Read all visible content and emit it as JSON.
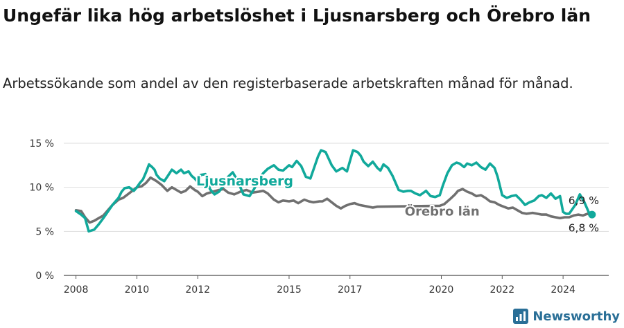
{
  "title": "Ungefär lika hög arbetslöshet i Ljusnarsberg och Örebro län",
  "subtitle": "Arbetssökande som andel av den registerbaserade arbetskraften månad för månad.",
  "brand": {
    "name": "Newsworthy",
    "icon": "newsworthy-logo-icon"
  },
  "colors": {
    "ljusnarsberg": "#11a99b",
    "orebro": "#707070",
    "brand": "#2a6f97"
  },
  "chart_data": {
    "type": "line",
    "title": "Ungefär lika hög arbetslöshet i Ljusnarsberg och Örebro län",
    "xlabel": "",
    "ylabel": "",
    "ylim": [
      0,
      15
    ],
    "xlim": [
      2007.6,
      2025.5
    ],
    "y_ticks": [
      0,
      5,
      10,
      15
    ],
    "y_tick_labels": [
      "0 %",
      "5 %",
      "10 %",
      "15 %"
    ],
    "x_ticks": [
      2008,
      2010,
      2012,
      2015,
      2017,
      2020,
      2022,
      2024
    ],
    "x_tick_labels": [
      "2008",
      "2010",
      "2012",
      "2015",
      "2017",
      "2020",
      "2022",
      "2024"
    ],
    "grid": true,
    "series": [
      {
        "name": "Ljusnarsberg",
        "label": "Ljusnarsberg",
        "end_label": "6,9 %",
        "color": "#11a99b",
        "x": [
          2008.0,
          2008.17,
          2008.3,
          2008.42,
          2008.6,
          2008.75,
          2008.9,
          2009.0,
          2009.2,
          2009.4,
          2009.5,
          2009.6,
          2009.75,
          2009.9,
          2010.0,
          2010.1,
          2010.2,
          2010.3,
          2010.4,
          2010.5,
          2010.58,
          2010.65,
          2010.75,
          2010.9,
          2011.0,
          2011.15,
          2011.3,
          2011.45,
          2011.55,
          2011.7,
          2011.8,
          2011.9,
          2012.0,
          2012.1,
          2012.25,
          2012.4,
          2012.55,
          2012.7,
          2012.85,
          2013.0,
          2013.15,
          2013.3,
          2013.5,
          2013.7,
          2013.85,
          2014.0,
          2014.15,
          2014.3,
          2014.5,
          2014.65,
          2014.8,
          2015.0,
          2015.1,
          2015.25,
          2015.4,
          2015.55,
          2015.7,
          2015.85,
          2015.95,
          2016.05,
          2016.2,
          2016.4,
          2016.55,
          2016.75,
          2016.9,
          2017.0,
          2017.1,
          2017.25,
          2017.35,
          2017.45,
          2017.6,
          2017.75,
          2017.9,
          2018.0,
          2018.1,
          2018.25,
          2018.4,
          2018.6,
          2018.75,
          2018.9,
          2019.0,
          2019.15,
          2019.3,
          2019.5,
          2019.65,
          2019.8,
          2019.95,
          2020.05,
          2020.2,
          2020.35,
          2020.5,
          2020.6,
          2020.75,
          2020.85,
          2021.0,
          2021.15,
          2021.3,
          2021.45,
          2021.6,
          2021.75,
          2021.85,
          2022.0,
          2022.15,
          2022.3,
          2022.45,
          2022.6,
          2022.75,
          2022.9,
          2023.05,
          2023.2,
          2023.3,
          2023.45,
          2023.6,
          2023.75,
          2023.9,
          2024.0,
          2024.1,
          2024.2,
          2024.3,
          2024.4,
          2024.55,
          2024.7,
          2024.85,
          2024.95
        ],
        "values": [
          7.3,
          6.9,
          6.5,
          5.0,
          5.2,
          5.8,
          6.5,
          7.0,
          8.0,
          8.8,
          9.5,
          9.9,
          10.0,
          9.6,
          10.0,
          10.5,
          10.9,
          11.7,
          12.6,
          12.3,
          12.0,
          11.4,
          11.0,
          10.7,
          11.2,
          12.0,
          11.6,
          12.0,
          11.6,
          11.8,
          11.3,
          11.0,
          10.6,
          11.4,
          11.5,
          9.8,
          9.2,
          9.5,
          10.2,
          11.2,
          11.7,
          10.8,
          9.2,
          9.0,
          9.8,
          10.8,
          11.6,
          12.1,
          12.5,
          12.0,
          11.9,
          12.5,
          12.3,
          13.0,
          12.4,
          11.2,
          11.0,
          12.5,
          13.5,
          14.2,
          14.0,
          12.5,
          11.8,
          12.2,
          11.8,
          13.0,
          14.2,
          14.0,
          13.6,
          12.9,
          12.4,
          12.9,
          12.2,
          11.9,
          12.6,
          12.2,
          11.3,
          9.7,
          9.5,
          9.6,
          9.6,
          9.3,
          9.1,
          9.6,
          9.0,
          8.9,
          9.1,
          10.2,
          11.6,
          12.5,
          12.8,
          12.7,
          12.3,
          12.7,
          12.5,
          12.8,
          12.3,
          12.0,
          12.7,
          12.2,
          11.2,
          9.1,
          8.8,
          9.0,
          9.1,
          8.6,
          8.0,
          8.3,
          8.5,
          9.0,
          9.1,
          8.8,
          9.3,
          8.7,
          9.0,
          7.2,
          7.0,
          7.0,
          7.5,
          8.0,
          9.2,
          8.3,
          7.1,
          6.9
        ]
      },
      {
        "name": "Örebro län",
        "label": "Örebro län",
        "end_label": "6,8 %",
        "color": "#707070",
        "x": [
          2008.0,
          2008.17,
          2008.3,
          2008.45,
          2008.6,
          2008.75,
          2008.9,
          2009.0,
          2009.2,
          2009.4,
          2009.55,
          2009.7,
          2009.85,
          2010.0,
          2010.15,
          2010.3,
          2010.45,
          2010.55,
          2010.65,
          2010.8,
          2011.0,
          2011.15,
          2011.3,
          2011.45,
          2011.6,
          2011.75,
          2011.9,
          2012.0,
          2012.15,
          2012.3,
          2012.5,
          2012.7,
          2012.85,
          2013.0,
          2013.2,
          2013.4,
          2013.6,
          2013.8,
          2014.0,
          2014.15,
          2014.3,
          2014.5,
          2014.65,
          2014.8,
          2015.0,
          2015.15,
          2015.3,
          2015.5,
          2015.65,
          2015.8,
          2016.0,
          2016.1,
          2016.25,
          2016.4,
          2016.55,
          2016.7,
          2016.85,
          2017.0,
          2017.15,
          2017.3,
          2017.45,
          2017.6,
          2017.75,
          2017.9,
          2019.95,
          2020.1,
          2020.3,
          2020.45,
          2020.55,
          2020.7,
          2020.85,
          2021.0,
          2021.15,
          2021.3,
          2021.45,
          2021.6,
          2021.75,
          2021.9,
          2022.05,
          2022.2,
          2022.35,
          2022.5,
          2022.65,
          2022.8,
          2023.0,
          2023.15,
          2023.3,
          2023.45,
          2023.6,
          2023.75,
          2023.9,
          2024.05,
          2024.2,
          2024.35,
          2024.5,
          2024.65,
          2024.8,
          2024.95
        ],
        "values": [
          7.4,
          7.3,
          6.6,
          6.0,
          6.2,
          6.5,
          6.8,
          7.2,
          8.0,
          8.6,
          8.8,
          9.2,
          9.6,
          10.0,
          10.1,
          10.5,
          11.1,
          10.9,
          10.7,
          10.3,
          9.6,
          10.0,
          9.7,
          9.4,
          9.6,
          10.1,
          9.7,
          9.5,
          9.0,
          9.3,
          9.5,
          9.7,
          9.8,
          9.4,
          9.2,
          9.5,
          9.7,
          9.4,
          9.5,
          9.6,
          9.3,
          8.6,
          8.3,
          8.5,
          8.4,
          8.5,
          8.2,
          8.6,
          8.4,
          8.3,
          8.4,
          8.4,
          8.7,
          8.3,
          7.9,
          7.6,
          7.9,
          8.1,
          8.2,
          8.0,
          7.9,
          7.8,
          7.7,
          7.8,
          7.9,
          8.1,
          8.7,
          9.2,
          9.6,
          9.8,
          9.5,
          9.3,
          9.0,
          9.1,
          8.8,
          8.4,
          8.3,
          8.0,
          7.8,
          7.6,
          7.7,
          7.4,
          7.1,
          7.0,
          7.1,
          7.0,
          6.9,
          6.9,
          6.7,
          6.6,
          6.5,
          6.6,
          6.6,
          6.8,
          6.9,
          6.8,
          7.0,
          6.8
        ]
      }
    ]
  }
}
